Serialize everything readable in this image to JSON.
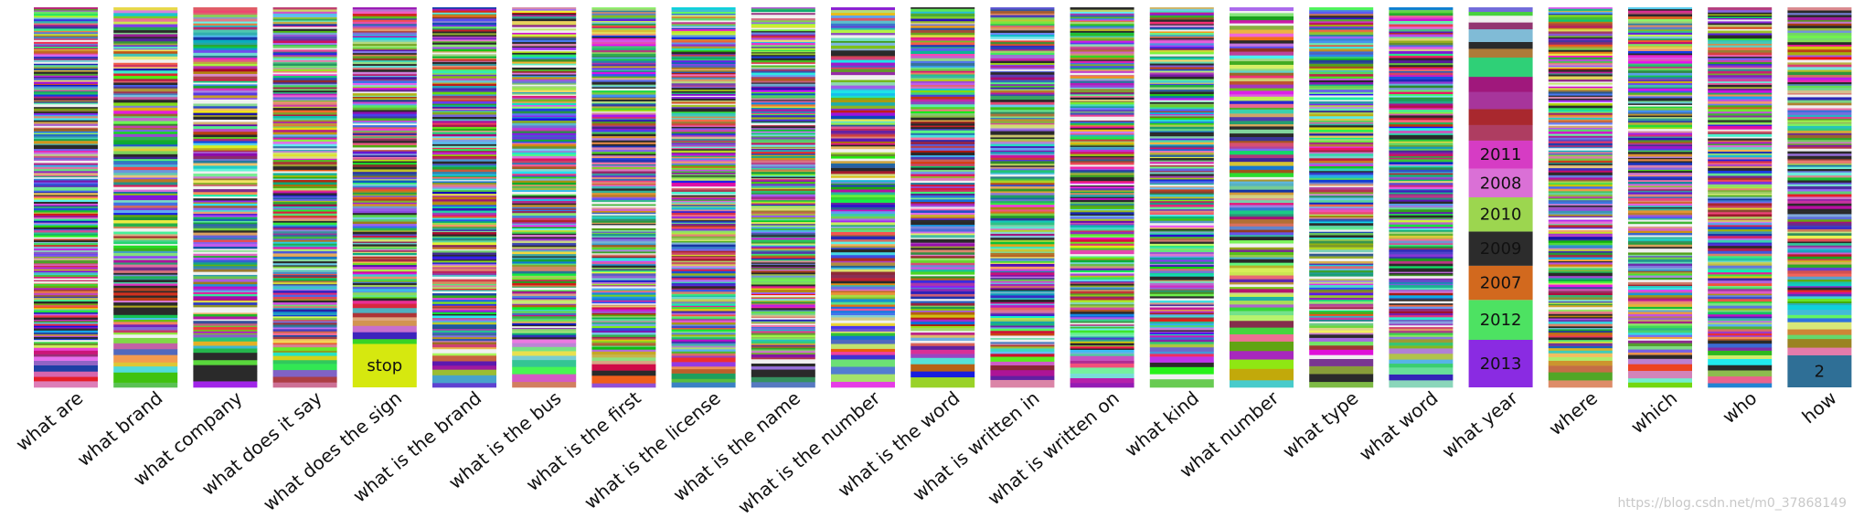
{
  "chart_data": {
    "type": "stacked-bar",
    "categories": [
      "what are",
      "what brand",
      "what company",
      "what does it say",
      "what does the sign",
      "what is the brand",
      "what is the bus",
      "what is the first",
      "what is the license",
      "what is the name",
      "what is the number",
      "what is the word",
      "what is written in",
      "what is written on",
      "what kind",
      "what number",
      "what type",
      "what word",
      "what year",
      "where",
      "which",
      "who",
      "how"
    ],
    "ylim": [
      0,
      1
    ],
    "labeled_segments": [
      {
        "category": "what does the sign",
        "label": "stop",
        "start": 0.0,
        "end": 0.115,
        "color": "#d6e80f"
      },
      {
        "category": "what year",
        "label": "2013",
        "start": 0.0,
        "end": 0.125,
        "color": "#8a2be2"
      },
      {
        "category": "what year",
        "label": "2012",
        "start": 0.125,
        "end": 0.23,
        "color": "#4de262"
      },
      {
        "category": "what year",
        "label": "2007",
        "start": 0.23,
        "end": 0.32,
        "color": "#d2691e"
      },
      {
        "category": "what year",
        "label": "2009",
        "start": 0.32,
        "end": 0.41,
        "color": "#2c2c2c"
      },
      {
        "category": "what year",
        "label": "2010",
        "start": 0.41,
        "end": 0.5,
        "color": "#9cd64f"
      },
      {
        "category": "what year",
        "label": "2008",
        "start": 0.5,
        "end": 0.575,
        "color": "#da70d6"
      },
      {
        "category": "what year",
        "label": "2011",
        "start": 0.575,
        "end": 0.65,
        "color": "#d63cc4"
      },
      {
        "category": "how",
        "label": "2",
        "start": 0.0,
        "end": 0.085,
        "color": "#2f6f96"
      }
    ],
    "unlabeled_segment_counts": [
      220,
      150,
      160,
      200,
      170,
      200,
      190,
      210,
      220,
      230,
      150,
      170,
      190,
      210,
      200,
      110,
      180,
      180,
      12,
      200,
      190,
      180,
      140
    ]
  },
  "watermark": "https://blog.csdn.net/m0_37868149"
}
